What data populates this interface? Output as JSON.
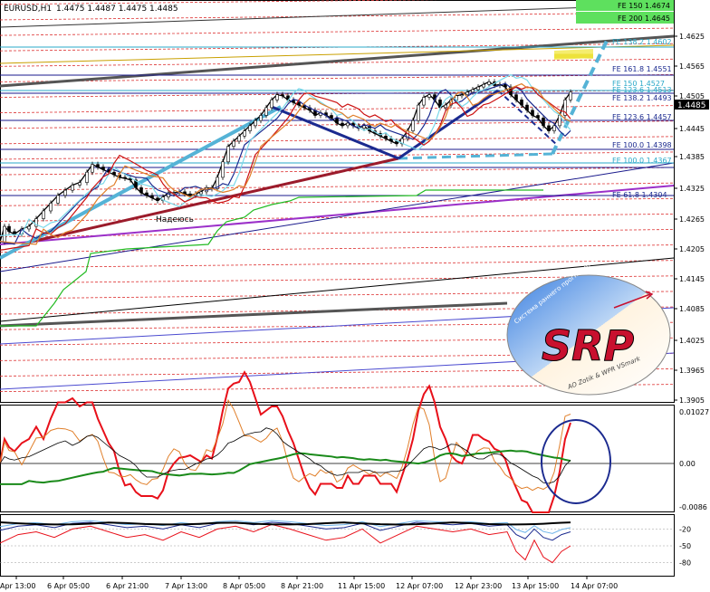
{
  "header": {
    "symbol": "EURUSD,H1",
    "ohlc": "1.4475 1.4487 1.4475 1.4485"
  },
  "chart_data": {
    "type": "candlestick",
    "y_ticks_main": [
      "1.4625",
      "1.4565",
      "1.4505",
      "1.4445",
      "1.4385",
      "1.4325",
      "1.4265",
      "1.4205",
      "1.4145",
      "1.4085",
      "1.4025",
      "1.3965",
      "1.3905"
    ],
    "current_price": "1.4485",
    "x_ticks": [
      "Apr 13:00",
      "6 Apr 05:00",
      "6 Apr 21:00",
      "7 Apr 13:00",
      "8 Apr 05:00",
      "8 Apr 21:00",
      "11 Apr 15:00",
      "12 Apr 07:00",
      "12 Apr 23:00",
      "13 Apr 15:00",
      "14 Apr 07:00"
    ],
    "fe_labels": [
      {
        "text": "FE 150 1.4674",
        "style": "box"
      },
      {
        "text": "FE 200 1.4645",
        "style": "box"
      },
      {
        "text": "FE 138.2 1.4602",
        "style": "cyan"
      },
      {
        "text": "FE 161.8 1.4551",
        "style": "navy"
      },
      {
        "text": "FE 150 1.4527",
        "style": "cyan"
      },
      {
        "text": "FE 123.6 1.4513",
        "style": "cyan"
      },
      {
        "text": "FE 138.2 1.4493",
        "style": "navy"
      },
      {
        "text": "FE 123.6 1.4457",
        "style": "navy"
      },
      {
        "text": "FE 100.0 1.4398",
        "style": "navy"
      },
      {
        "text": "FE 100.0 1.4367",
        "style": "cyan"
      },
      {
        "text": "FE 61.8 1.4304",
        "style": "navy"
      }
    ],
    "annotation": "Надеюсь",
    "osc1_ticks": [
      "0.01027",
      "0.00",
      "-0.0086"
    ],
    "osc2_ticks": [
      "-20",
      "-50",
      "-80"
    ],
    "close_path": [
      [
        0,
        1.4195
      ],
      [
        5,
        1.4225
      ],
      [
        10,
        1.4215
      ],
      [
        16,
        1.421
      ],
      [
        24,
        1.422
      ],
      [
        32,
        1.4225
      ],
      [
        40,
        1.424
      ],
      [
        48,
        1.4255
      ],
      [
        56,
        1.427
      ],
      [
        64,
        1.4285
      ],
      [
        72,
        1.4295
      ],
      [
        80,
        1.4305
      ],
      [
        88,
        1.431
      ],
      [
        96,
        1.433
      ],
      [
        102,
        1.4345
      ],
      [
        108,
        1.434
      ],
      [
        114,
        1.4335
      ],
      [
        120,
        1.433
      ],
      [
        126,
        1.4325
      ],
      [
        132,
        1.432
      ],
      [
        138,
        1.4318
      ],
      [
        144,
        1.4315
      ],
      [
        150,
        1.43
      ],
      [
        156,
        1.429
      ],
      [
        162,
        1.4285
      ],
      [
        168,
        1.428
      ],
      [
        174,
        1.4275
      ],
      [
        180,
        1.4282
      ],
      [
        186,
        1.429
      ],
      [
        192,
        1.429
      ],
      [
        198,
        1.4292
      ],
      [
        204,
        1.4288
      ],
      [
        210,
        1.4285
      ],
      [
        216,
        1.4288
      ],
      [
        222,
        1.4292
      ],
      [
        228,
        1.43
      ],
      [
        234,
        1.4298
      ],
      [
        240,
        1.432
      ],
      [
        246,
        1.435
      ],
      [
        252,
        1.438
      ],
      [
        258,
        1.439
      ],
      [
        264,
        1.44
      ],
      [
        270,
        1.441
      ],
      [
        276,
        1.442
      ],
      [
        282,
        1.443
      ],
      [
        288,
        1.444
      ],
      [
        294,
        1.4455
      ],
      [
        300,
        1.447
      ],
      [
        306,
        1.448
      ],
      [
        312,
        1.4478
      ],
      [
        318,
        1.447
      ],
      [
        324,
        1.4465
      ],
      [
        330,
        1.446
      ],
      [
        336,
        1.4455
      ],
      [
        342,
        1.445
      ],
      [
        348,
        1.444
      ],
      [
        354,
        1.4445
      ],
      [
        360,
        1.444
      ],
      [
        366,
        1.4435
      ],
      [
        372,
        1.4425
      ],
      [
        378,
        1.442
      ],
      [
        384,
        1.4425
      ],
      [
        390,
        1.442
      ],
      [
        396,
        1.4415
      ],
      [
        402,
        1.442
      ],
      [
        408,
        1.441
      ],
      [
        414,
        1.4405
      ],
      [
        420,
        1.44
      ],
      [
        426,
        1.4395
      ],
      [
        432,
        1.439
      ],
      [
        438,
        1.4385
      ],
      [
        444,
        1.4395
      ],
      [
        450,
        1.441
      ],
      [
        456,
        1.443
      ],
      [
        462,
        1.446
      ],
      [
        468,
        1.4475
      ],
      [
        474,
        1.448
      ],
      [
        480,
        1.447
      ],
      [
        486,
        1.4455
      ],
      [
        492,
        1.446
      ],
      [
        498,
        1.447
      ],
      [
        504,
        1.4478
      ],
      [
        510,
        1.448
      ],
      [
        516,
        1.4485
      ],
      [
        522,
        1.449
      ],
      [
        528,
        1.4495
      ],
      [
        534,
        1.45
      ],
      [
        540,
        1.4505
      ],
      [
        546,
        1.4498
      ],
      [
        552,
        1.45
      ],
      [
        558,
        1.4495
      ],
      [
        564,
        1.448
      ],
      [
        570,
        1.447
      ],
      [
        576,
        1.446
      ],
      [
        582,
        1.445
      ],
      [
        588,
        1.444
      ],
      [
        594,
        1.4435
      ],
      [
        600,
        1.442
      ],
      [
        606,
        1.441
      ],
      [
        612,
        1.442
      ],
      [
        618,
        1.444
      ],
      [
        624,
        1.447
      ],
      [
        630,
        1.4485
      ]
    ],
    "rsi_path": [
      [
        0,
        -45
      ],
      [
        20,
        -30
      ],
      [
        40,
        -25
      ],
      [
        60,
        -35
      ],
      [
        80,
        -20
      ],
      [
        100,
        -15
      ],
      [
        120,
        -25
      ],
      [
        140,
        -35
      ],
      [
        160,
        -30
      ],
      [
        180,
        -40
      ],
      [
        200,
        -25
      ],
      [
        220,
        -35
      ],
      [
        240,
        -20
      ],
      [
        260,
        -15
      ],
      [
        280,
        -25
      ],
      [
        300,
        -12
      ],
      [
        320,
        -20
      ],
      [
        340,
        -30
      ],
      [
        360,
        -40
      ],
      [
        380,
        -35
      ],
      [
        400,
        -20
      ],
      [
        420,
        -45
      ],
      [
        440,
        -30
      ],
      [
        460,
        -15
      ],
      [
        480,
        -20
      ],
      [
        500,
        -25
      ],
      [
        520,
        -20
      ],
      [
        540,
        -30
      ],
      [
        560,
        -25
      ],
      [
        570,
        -60
      ],
      [
        580,
        -75
      ],
      [
        590,
        -40
      ],
      [
        600,
        -70
      ],
      [
        610,
        -80
      ],
      [
        620,
        -60
      ],
      [
        630,
        -50
      ]
    ]
  }
}
